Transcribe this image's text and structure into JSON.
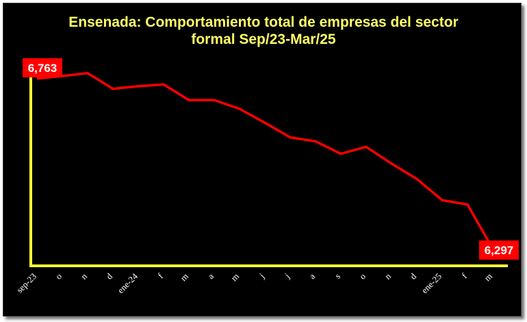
{
  "chart_data": {
    "type": "line",
    "title_line1": "Ensenada: Comportamiento total de empresas del sector",
    "title_line2": "formal Sep/23-Mar/25",
    "xlabel": "",
    "ylabel": "",
    "categories": [
      "sep-23",
      "o",
      "n",
      "d",
      "ene-24",
      "f",
      "m",
      "a",
      "m",
      "j",
      "j",
      "a",
      "s",
      "o",
      "n",
      "d",
      "ene-25",
      "f",
      "m"
    ],
    "series": [
      {
        "values": [
          6763,
          6770,
          6778,
          6735,
          6742,
          6747,
          6704,
          6704,
          6680,
          6642,
          6602,
          6591,
          6557,
          6576,
          6530,
          6488,
          6430,
          6418,
          6297
        ]
      }
    ],
    "first_label": "6,763",
    "last_label": "6,297",
    "ylim": [
      6250,
      6800
    ],
    "grid": false,
    "legend": "none",
    "colors": {
      "line": "#ff0000",
      "axis": "#ffff33",
      "background": "#000000",
      "title": "#ffff66",
      "label_box": "#ff0000"
    }
  }
}
